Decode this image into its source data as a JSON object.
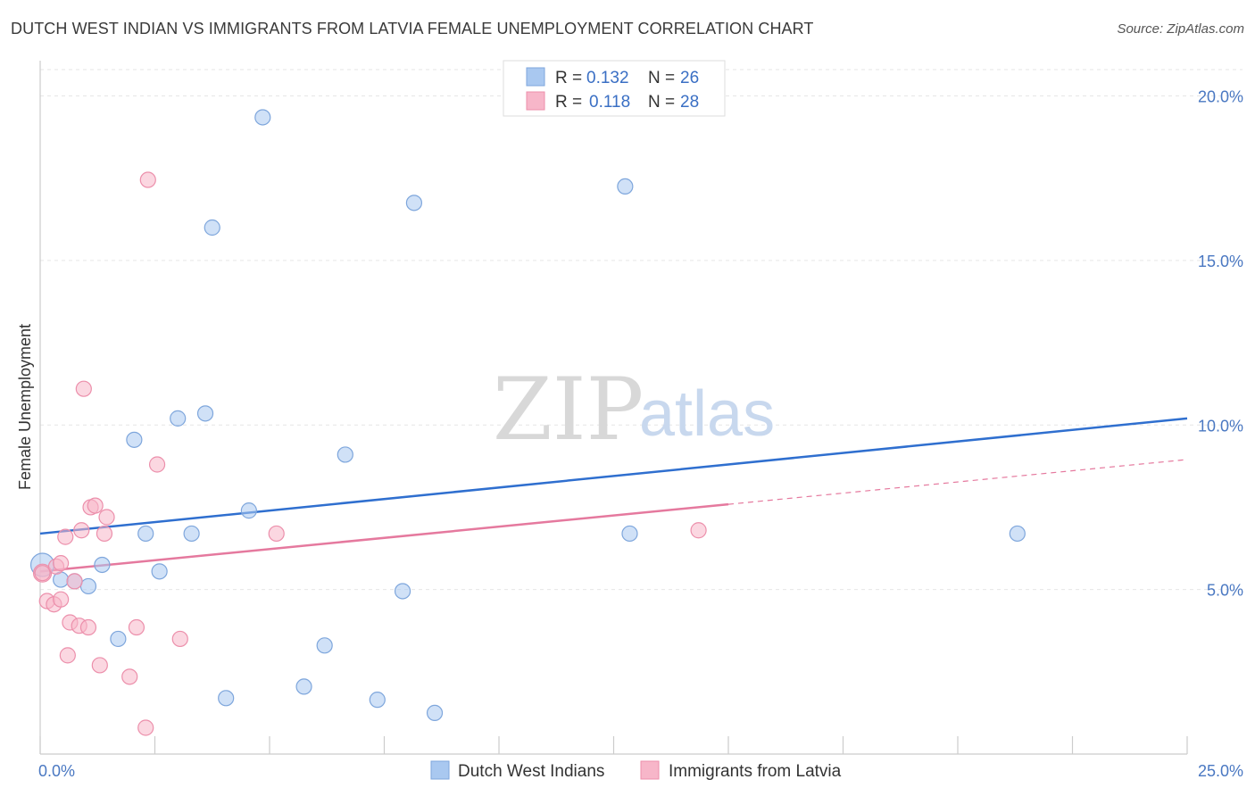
{
  "title": "DUTCH WEST INDIAN VS IMMIGRANTS FROM LATVIA FEMALE UNEMPLOYMENT CORRELATION CHART",
  "source": "Source: ZipAtlas.com",
  "watermark": {
    "zip": "ZIP",
    "atlas": "atlas"
  },
  "legend_top": {
    "r_label": "R =",
    "n_label": "N =",
    "rows": [
      {
        "r": "0.132",
        "n": "26",
        "color": "#a9c8f0"
      },
      {
        "r": "0.118",
        "n": "28",
        "color": "#f7b6c9"
      }
    ]
  },
  "chart_data": {
    "type": "scatter",
    "xlabel": "",
    "ylabel": "Female Unemployment",
    "xlim": [
      0,
      25
    ],
    "ylim": [
      0,
      20.8
    ],
    "x_tick_labels": [
      "0.0%",
      "25.0%"
    ],
    "y_ticks": [
      5,
      10,
      15,
      20
    ],
    "y_tick_labels": [
      "5.0%",
      "10.0%",
      "15.0%",
      "20.0%"
    ],
    "grid": true,
    "series": [
      {
        "name": "Dutch West Indians",
        "color": "#a9c8f0",
        "stroke": "#7ea6dc",
        "line_color": "#2f6fcf",
        "trend": {
          "x0": 0,
          "y0": 6.7,
          "x1": 25,
          "y1": 10.2,
          "dashed_from": null
        },
        "points": [
          [
            0.05,
            5.75
          ],
          [
            0.45,
            5.3
          ],
          [
            0.75,
            5.25
          ],
          [
            1.05,
            5.1
          ],
          [
            1.35,
            5.75
          ],
          [
            1.7,
            3.5
          ],
          [
            2.05,
            9.55
          ],
          [
            2.3,
            6.7
          ],
          [
            2.6,
            5.55
          ],
          [
            3.0,
            10.2
          ],
          [
            3.3,
            6.7
          ],
          [
            3.6,
            10.35
          ],
          [
            3.75,
            16.0
          ],
          [
            4.05,
            1.7
          ],
          [
            4.55,
            7.4
          ],
          [
            4.85,
            19.35
          ],
          [
            5.75,
            2.05
          ],
          [
            6.2,
            3.3
          ],
          [
            6.65,
            9.1
          ],
          [
            7.35,
            1.65
          ],
          [
            7.9,
            4.95
          ],
          [
            8.15,
            16.75
          ],
          [
            8.6,
            1.25
          ],
          [
            12.75,
            17.25
          ],
          [
            12.85,
            6.7
          ],
          [
            21.3,
            6.7
          ]
        ]
      },
      {
        "name": "Immigrants from Latvia",
        "color": "#f7b6c9",
        "stroke": "#ec8fab",
        "line_color": "#e5799e",
        "trend": {
          "x0": 0,
          "y0": 5.55,
          "x1": 25,
          "y1": 8.95,
          "dashed_from": 15
        },
        "points": [
          [
            0.05,
            5.5
          ],
          [
            0.15,
            4.65
          ],
          [
            0.3,
            4.55
          ],
          [
            0.35,
            5.7
          ],
          [
            0.45,
            4.7
          ],
          [
            0.45,
            5.8
          ],
          [
            0.55,
            6.6
          ],
          [
            0.6,
            3.0
          ],
          [
            0.65,
            4.0
          ],
          [
            0.75,
            5.25
          ],
          [
            0.85,
            3.9
          ],
          [
            0.9,
            6.8
          ],
          [
            0.95,
            11.1
          ],
          [
            1.05,
            3.85
          ],
          [
            1.1,
            7.5
          ],
          [
            1.2,
            7.55
          ],
          [
            1.3,
            2.7
          ],
          [
            1.4,
            6.7
          ],
          [
            1.45,
            7.2
          ],
          [
            1.95,
            2.35
          ],
          [
            2.1,
            3.85
          ],
          [
            2.3,
            0.8
          ],
          [
            2.35,
            17.45
          ],
          [
            2.55,
            8.8
          ],
          [
            3.05,
            3.5
          ],
          [
            5.15,
            6.7
          ],
          [
            14.35,
            6.8
          ],
          [
            0.05,
            5.5
          ]
        ]
      }
    ]
  }
}
